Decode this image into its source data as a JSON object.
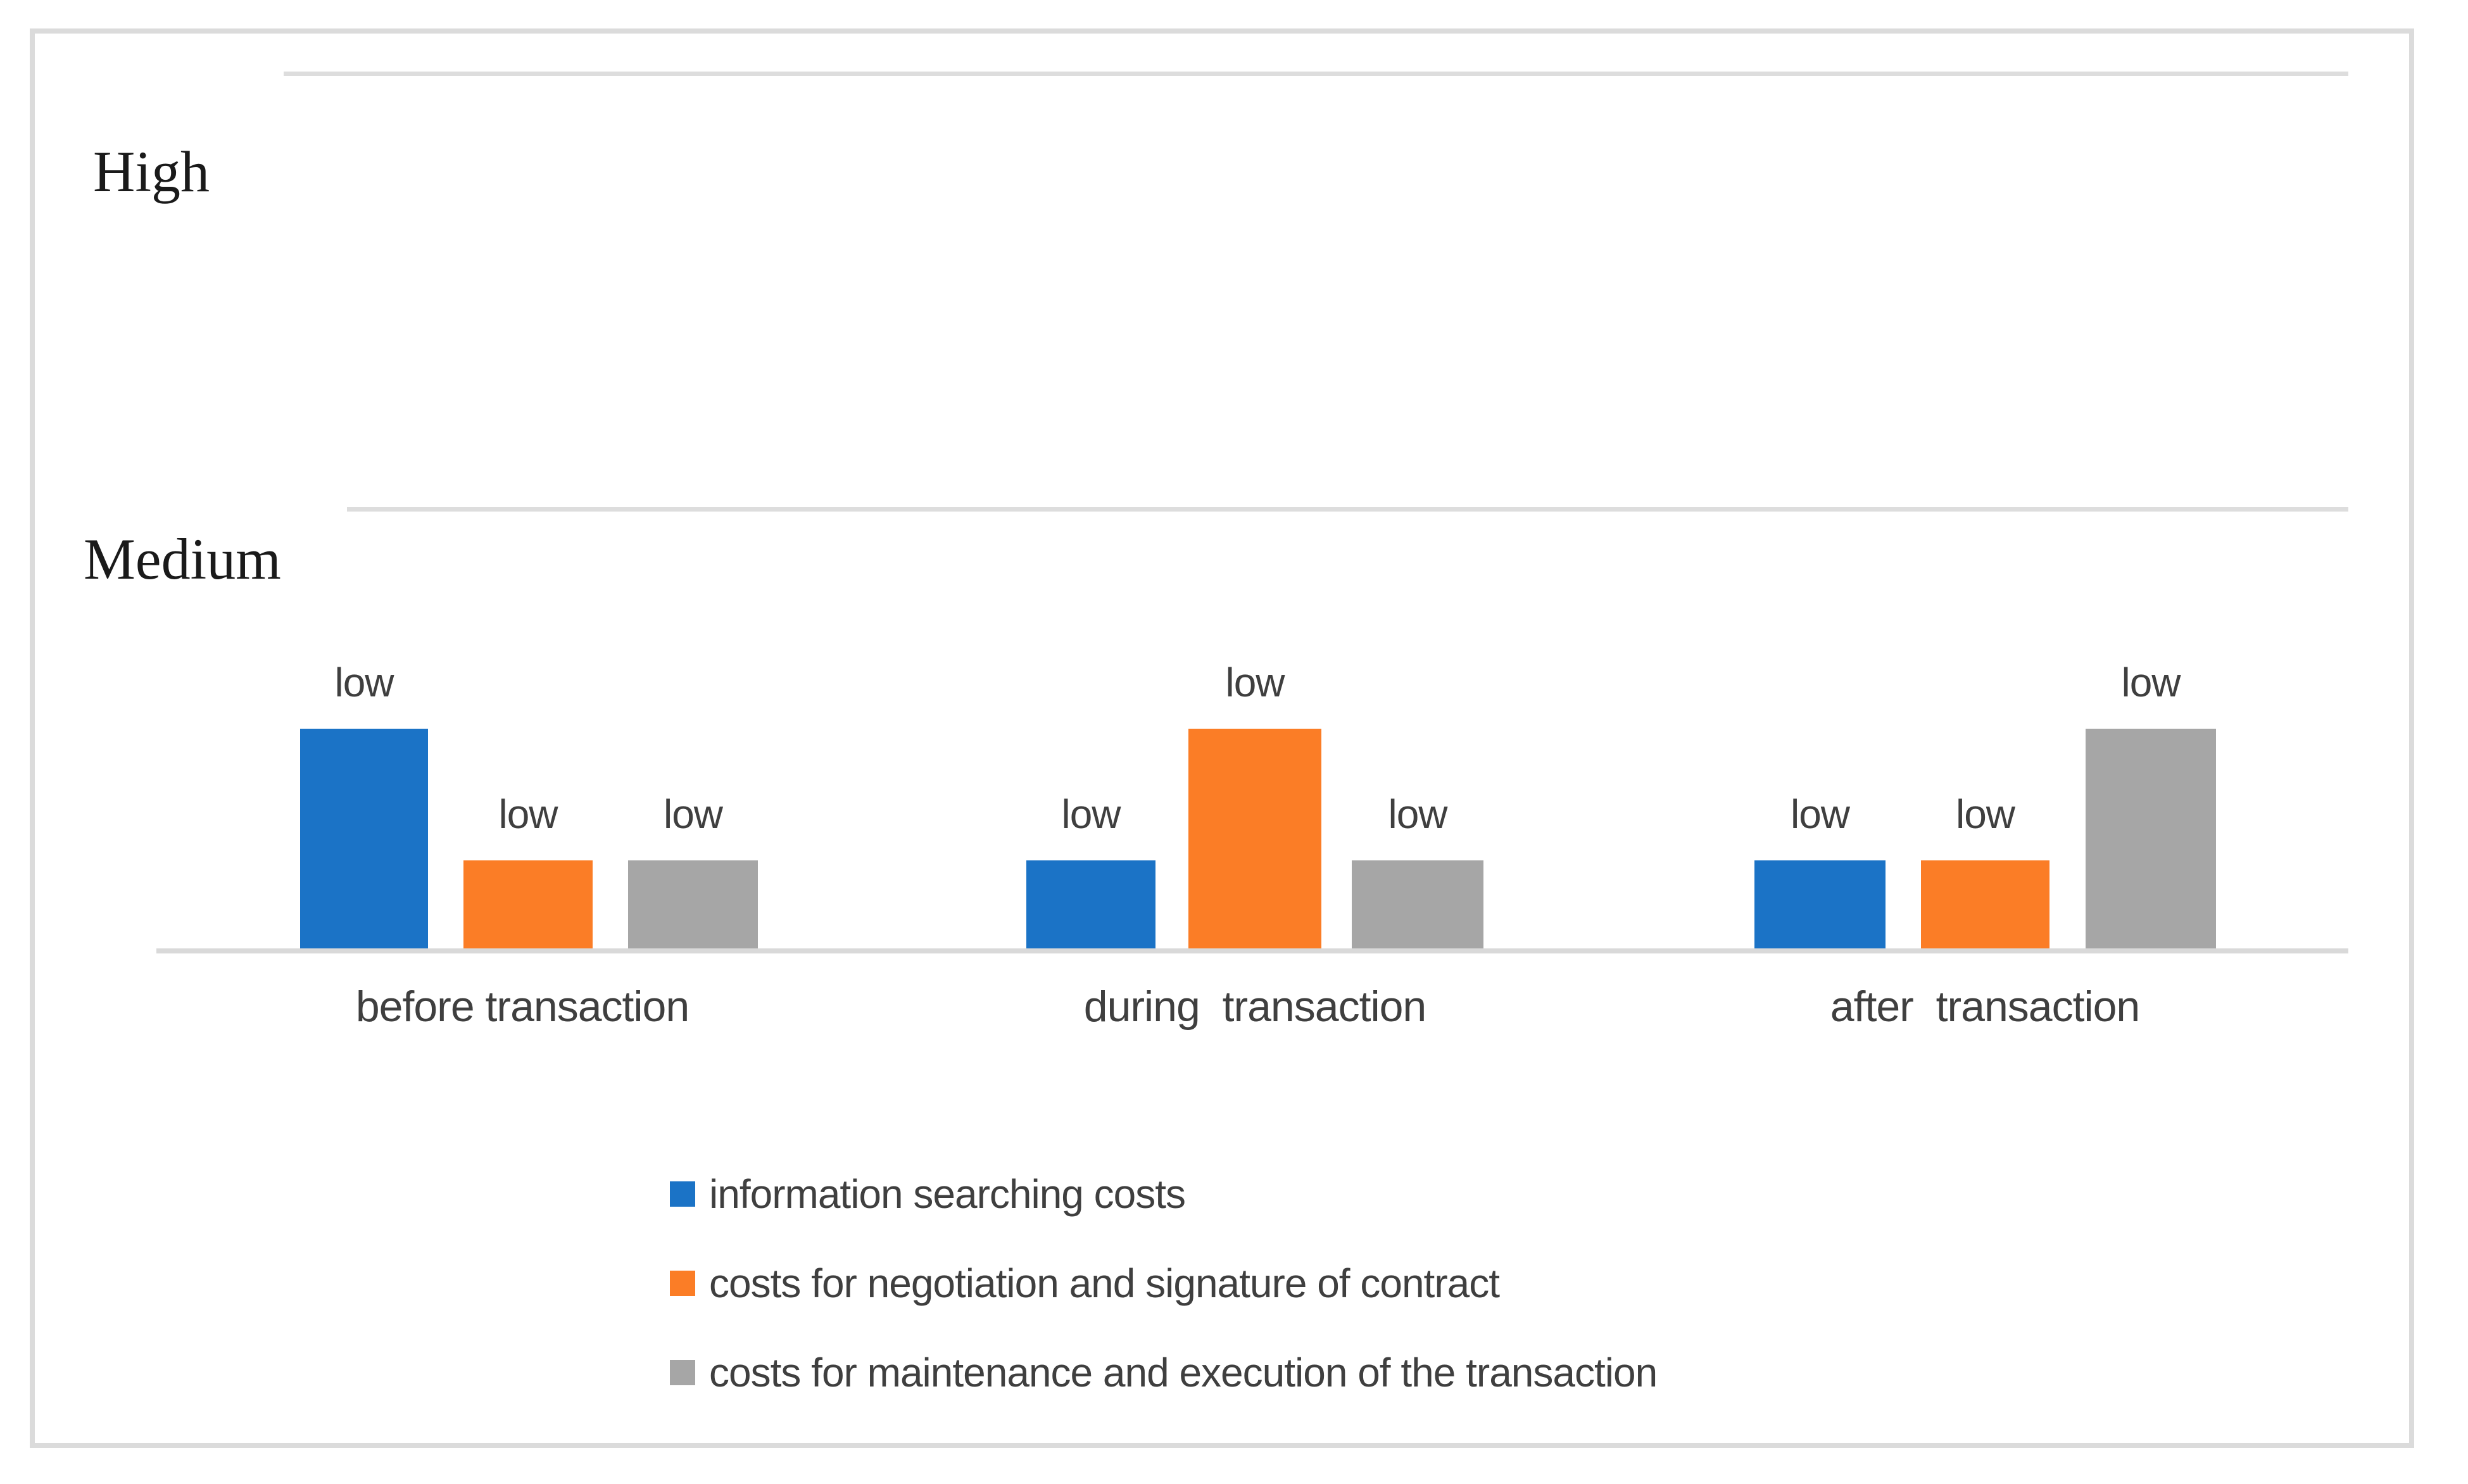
{
  "figure": {
    "y_axis_label_high": "High",
    "y_axis_label_medium": "Medium"
  },
  "chart_data": {
    "type": "bar",
    "title": "",
    "xlabel": "",
    "ylabel": "",
    "categories": [
      "before transaction",
      "during  transaction",
      "after  transaction"
    ],
    "series": [
      {
        "name": "information searching costs",
        "color": "#1B73C6",
        "values": [
          0.5,
          0.2,
          0.2
        ],
        "data_labels": [
          "low",
          "low",
          "low"
        ]
      },
      {
        "name": "costs for negotiation and signature of contract",
        "color": "#FB7D26",
        "values": [
          0.2,
          0.5,
          0.2
        ],
        "data_labels": [
          "low",
          "low",
          "low"
        ]
      },
      {
        "name": "costs for maintenance and execution of the transaction",
        "color": "#A6A6A6",
        "values": [
          0.2,
          0.2,
          0.5
        ],
        "data_labels": [
          "low",
          "low",
          "low"
        ]
      }
    ],
    "y_axis": {
      "type": "qualitative",
      "tick_labels": [
        "High",
        "Medium"
      ],
      "scale_note": "bar values expressed relative to the Medium gridline = 1.0; all bars annotated 'low'"
    },
    "ylim": [
      0,
      2
    ],
    "grid": true,
    "gridline_color": "#DDDDDD",
    "axis_line_color": "#D9D9D9",
    "frame_color": "#DBDBDB",
    "text_color": "#3F3F3F",
    "legend_position": "bottom-left"
  }
}
